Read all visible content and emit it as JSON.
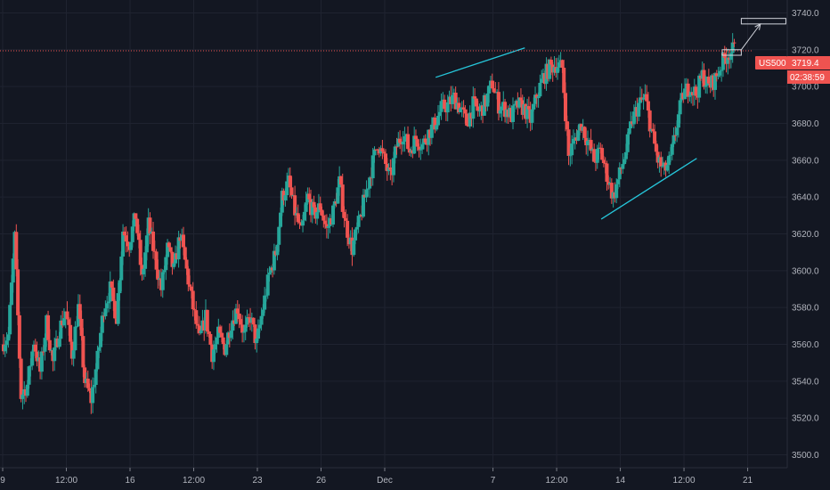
{
  "chart_data": {
    "type": "candlestick",
    "title": "",
    "symbol": "US500",
    "last_price": "3719.4",
    "countdown": "02:38:59",
    "ylim": [
      3493,
      3747
    ],
    "y_ticks": [
      3500,
      3520,
      3540,
      3560,
      3580,
      3600,
      3620,
      3640,
      3660,
      3680,
      3700,
      3720,
      3740
    ],
    "y_tick_labels": [
      "3500.0",
      "3520.0",
      "3540.0",
      "3560.0",
      "3580.0",
      "3600.0",
      "3620.0",
      "3640.0",
      "3660.0",
      "3680.0",
      "3700.0",
      "3720.0",
      "3740.0"
    ],
    "x_ticks": [
      {
        "label": "9",
        "t": 0
      },
      {
        "label": "12:00",
        "t": 10
      },
      {
        "label": "16",
        "t": 20
      },
      {
        "label": "12:00",
        "t": 30
      },
      {
        "label": "23",
        "t": 40
      },
      {
        "label": "26",
        "t": 50
      },
      {
        "label": "Dec",
        "t": 60
      },
      {
        "label": "7",
        "t": 77
      },
      {
        "label": "12:00",
        "t": 87
      },
      {
        "label": "14",
        "t": 97
      },
      {
        "label": "12:00",
        "t": 107
      },
      {
        "label": "21",
        "t": 117
      }
    ],
    "grid": true,
    "current_price_line": 3719.4,
    "up_color": "#26a69a",
    "down_color": "#ef5350",
    "trendline_color": "#26c6da",
    "anchors": [
      [
        0,
        3560
      ],
      [
        1,
        3565
      ],
      [
        2,
        3618
      ],
      [
        3,
        3532
      ],
      [
        4,
        3538
      ],
      [
        5,
        3562
      ],
      [
        6,
        3545
      ],
      [
        7,
        3572
      ],
      [
        8,
        3550
      ],
      [
        9,
        3568
      ],
      [
        10,
        3578
      ],
      [
        11,
        3555
      ],
      [
        12,
        3580
      ],
      [
        13,
        3540
      ],
      [
        14,
        3530
      ],
      [
        15,
        3552
      ],
      [
        16,
        3580
      ],
      [
        17,
        3590
      ],
      [
        18,
        3575
      ],
      [
        19,
        3622
      ],
      [
        20,
        3615
      ],
      [
        21,
        3630
      ],
      [
        22,
        3595
      ],
      [
        23,
        3625
      ],
      [
        24,
        3608
      ],
      [
        25,
        3590
      ],
      [
        26,
        3612
      ],
      [
        27,
        3600
      ],
      [
        28,
        3620
      ],
      [
        29,
        3600
      ],
      [
        30,
        3580
      ],
      [
        31,
        3562
      ],
      [
        32,
        3575
      ],
      [
        33,
        3555
      ],
      [
        34,
        3565
      ],
      [
        35,
        3558
      ],
      [
        36,
        3572
      ],
      [
        37,
        3580
      ],
      [
        38,
        3565
      ],
      [
        39,
        3575
      ],
      [
        40,
        3560
      ],
      [
        41,
        3580
      ],
      [
        42,
        3598
      ],
      [
        43,
        3610
      ],
      [
        44,
        3640
      ],
      [
        45,
        3648
      ],
      [
        46,
        3632
      ],
      [
        47,
        3620
      ],
      [
        48,
        3640
      ],
      [
        49,
        3630
      ],
      [
        50,
        3635
      ],
      [
        51,
        3622
      ],
      [
        52,
        3632
      ],
      [
        53,
        3648
      ],
      [
        54,
        3625
      ],
      [
        55,
        3612
      ],
      [
        56,
        3625
      ],
      [
        57,
        3640
      ],
      [
        58,
        3655
      ],
      [
        59,
        3670
      ],
      [
        60,
        3660
      ],
      [
        61,
        3650
      ],
      [
        62,
        3668
      ],
      [
        63,
        3675
      ],
      [
        64,
        3665
      ],
      [
        65,
        3672
      ],
      [
        66,
        3668
      ],
      [
        67,
        3675
      ],
      [
        68,
        3680
      ],
      [
        69,
        3688
      ],
      [
        70,
        3690
      ],
      [
        71,
        3694
      ],
      [
        72,
        3688
      ],
      [
        73,
        3680
      ],
      [
        74,
        3690
      ],
      [
        75,
        3686
      ],
      [
        76,
        3692
      ],
      [
        77,
        3702
      ],
      [
        78,
        3690
      ],
      [
        79,
        3688
      ],
      [
        80,
        3684
      ],
      [
        81,
        3690
      ],
      [
        82,
        3688
      ],
      [
        83,
        3682
      ],
      [
        84,
        3695
      ],
      [
        85,
        3705
      ],
      [
        86,
        3710
      ],
      [
        87,
        3712
      ],
      [
        88,
        3710
      ],
      [
        89,
        3662
      ],
      [
        90,
        3672
      ],
      [
        91,
        3680
      ],
      [
        92,
        3670
      ],
      [
        93,
        3660
      ],
      [
        94,
        3665
      ],
      [
        95,
        3652
      ],
      [
        96,
        3640
      ],
      [
        97,
        3652
      ],
      [
        98,
        3665
      ],
      [
        99,
        3682
      ],
      [
        100,
        3690
      ],
      [
        101,
        3694
      ],
      [
        102,
        3676
      ],
      [
        103,
        3660
      ],
      [
        104,
        3654
      ],
      [
        105,
        3660
      ],
      [
        106,
        3680
      ],
      [
        107,
        3696
      ],
      [
        108,
        3700
      ],
      [
        109,
        3696
      ],
      [
        110,
        3706
      ],
      [
        111,
        3700
      ],
      [
        112,
        3704
      ],
      [
        113,
        3712
      ],
      [
        114,
        3718
      ],
      [
        115,
        3720
      ]
    ],
    "trendlines": [
      {
        "t1": 68,
        "p1": 3705,
        "t2": 82,
        "p2": 3721
      },
      {
        "t1": 94,
        "p1": 3628,
        "t2": 109,
        "p2": 3661
      }
    ],
    "highlight_rect": {
      "t1": 113,
      "p1": 3717,
      "t2": 116,
      "p2": 3720
    },
    "target_rect": {
      "t1": 116,
      "p1": 3734,
      "t2": 123,
      "p2": 3737
    },
    "arrow": {
      "t1": 116,
      "p1": 3720,
      "t2": 119,
      "p2": 3734
    }
  }
}
